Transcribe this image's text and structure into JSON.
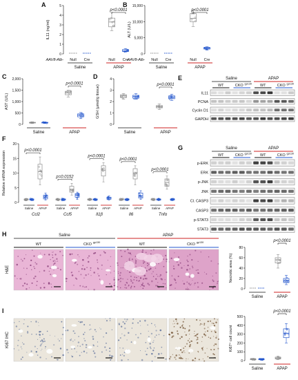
{
  "colors": {
    "wt_gray": "#8c8c8c",
    "cko_blue": "#2255cc",
    "apap_red": "#cc2222",
    "he_pink": "#d87fb8",
    "he_bg": "#e9b5d6",
    "ihc_bg": "#ebe6dc",
    "blot_band": "#2b2b2b"
  },
  "panels": {
    "A": {
      "letter": "A",
      "ylabel": "IL11 (ng/ml)",
      "yticks": [
        "0",
        "1",
        "2",
        "3",
        "4",
        "5"
      ],
      "p": "p<0.0001",
      "row_label": "AAV8-Alb-",
      "cats": [
        "Null",
        "Cre",
        "Null",
        "Cre"
      ],
      "groups": [
        "Saline",
        "APAP"
      ]
    },
    "B": {
      "letter": "B",
      "ylabel": "ALT (U/L)",
      "yticks": [
        "0",
        "5,000",
        "10,000",
        "15,000"
      ],
      "p": "p<0.0001",
      "row_label": "AAV8-Alb-",
      "cats": [
        "Null",
        "Cre",
        "Null",
        "Cre"
      ],
      "groups": [
        "Saline",
        "APAP"
      ]
    },
    "C": {
      "letter": "C",
      "ylabel": "AST (U/L)",
      "yticks": [
        "0",
        "500",
        "1,000",
        "1,500",
        "2,000"
      ],
      "p": "p<0.0001",
      "groups": [
        "Saline",
        "APAP"
      ]
    },
    "D": {
      "letter": "D",
      "ylabel": "GSH (μmol/g tissue)",
      "yticks": [
        "0",
        "1",
        "2",
        "3",
        "4"
      ],
      "p": "p<0.0001",
      "groups": [
        "Saline",
        "APAP"
      ]
    },
    "E": {
      "letter": "E",
      "groups": [
        "Saline",
        "APAP"
      ],
      "sub": [
        "WT",
        "CKO",
        "WT",
        "CKO"
      ],
      "sup": "gp130",
      "rows": [
        "IL11",
        "PCNA",
        "Cyclin D1",
        "GAPDH"
      ]
    },
    "F": {
      "letter": "F",
      "ylabel": "Relative mRNA expression",
      "yticks": [
        "0",
        "5",
        "10",
        "15",
        "20"
      ],
      "genes": [
        "Ccl2",
        "Ccl5",
        "Il1β",
        "Il6",
        "Tnfα"
      ],
      "pvals": [
        "p<0.0001",
        "p=0.0152",
        "p<0.0001",
        "p<0.0001",
        "p<0.0001"
      ],
      "xcats": [
        "Saline",
        "APAP"
      ]
    },
    "G": {
      "letter": "G",
      "groups": [
        "Saline",
        "APAP"
      ],
      "sub": [
        "WT",
        "CKO",
        "WT",
        "CKO"
      ],
      "sup": "gp130",
      "rows": [
        "p-ERK",
        "ERK",
        "p-JNK",
        "JNK",
        "Cl. CASP3",
        "CASP3",
        "p-STAT3",
        "STAT3"
      ]
    },
    "H": {
      "letter": "H",
      "row_label": "H&E",
      "top_groups": [
        "Saline",
        "APAP"
      ],
      "sub": [
        "WT",
        "CKO",
        "WT",
        "CKO"
      ],
      "sup": "gp130",
      "ylabel": "Necrotic area (%)",
      "yticks": [
        "0",
        "20",
        "40",
        "60",
        "80"
      ],
      "p": "p<0.0001",
      "groups": [
        "Saline",
        "APAP"
      ]
    },
    "I": {
      "letter": "I",
      "row_label": "Ki67 IHC",
      "ylabel": "Ki67⁺ cell count",
      "yticks": [
        "0",
        "100",
        "200",
        "300",
        "400",
        "500"
      ],
      "p": "p<0.0001",
      "groups": [
        "Saline",
        "APAP"
      ]
    }
  },
  "chart_data": [
    {
      "type": "box",
      "panel": "A",
      "ylabel": "IL11 (ng/ml)",
      "ylim": [
        0,
        5
      ],
      "categories": [
        "Saline Null",
        "Saline Cre",
        "APAP Null",
        "APAP Cre"
      ],
      "boxes": [
        {
          "min": 0,
          "q1": 0,
          "median": 0,
          "q3": 0,
          "max": 0
        },
        {
          "min": 0,
          "q1": 0,
          "median": 0,
          "q3": 0,
          "max": 0
        },
        {
          "min": 2.4,
          "q1": 2.8,
          "median": 3.3,
          "q3": 3.7,
          "max": 4.3
        },
        {
          "min": 0.2,
          "q1": 0.25,
          "median": 0.3,
          "q3": 0.45,
          "max": 0.55
        }
      ]
    },
    {
      "type": "box",
      "panel": "B",
      "ylabel": "ALT (U/L)",
      "ylim": [
        0,
        15000
      ],
      "categories": [
        "Saline Null",
        "Saline Cre",
        "APAP Null",
        "APAP Cre"
      ],
      "boxes": [
        {
          "min": 0,
          "q1": 0,
          "median": 0,
          "q3": 0,
          "max": 0
        },
        {
          "min": 0,
          "q1": 0,
          "median": 0,
          "q3": 0,
          "max": 0
        },
        {
          "min": 8500,
          "q1": 10000,
          "median": 11000,
          "q3": 12500,
          "max": 13500
        },
        {
          "min": 1200,
          "q1": 1500,
          "median": 1800,
          "q3": 2000,
          "max": 2200
        }
      ]
    },
    {
      "type": "box",
      "panel": "C",
      "ylabel": "AST (U/L)",
      "ylim": [
        0,
        2000
      ],
      "categories": [
        "Saline WT",
        "Saline CKO",
        "APAP WT",
        "APAP CKO"
      ],
      "boxes": [
        {
          "min": 40,
          "q1": 60,
          "median": 75,
          "q3": 90,
          "max": 110
        },
        {
          "min": 40,
          "q1": 60,
          "median": 75,
          "q3": 90,
          "max": 110
        },
        {
          "min": 1200,
          "q1": 1300,
          "median": 1380,
          "q3": 1450,
          "max": 1500
        },
        {
          "min": 250,
          "q1": 330,
          "median": 400,
          "q3": 460,
          "max": 520
        }
      ]
    },
    {
      "type": "box",
      "panel": "D",
      "ylabel": "GSH (μmol/g tissue)",
      "ylim": [
        0,
        4
      ],
      "categories": [
        "Saline WT",
        "Saline CKO",
        "APAP WT",
        "APAP CKO"
      ],
      "boxes": [
        {
          "min": 2.2,
          "q1": 2.35,
          "median": 2.5,
          "q3": 2.6,
          "max": 2.7
        },
        {
          "min": 2.2,
          "q1": 2.3,
          "median": 2.45,
          "q3": 2.55,
          "max": 2.7
        },
        {
          "min": 1.3,
          "q1": 1.45,
          "median": 1.55,
          "q3": 1.65,
          "max": 1.8
        },
        {
          "min": 2.1,
          "q1": 2.25,
          "median": 2.4,
          "q3": 2.5,
          "max": 2.65
        }
      ]
    },
    {
      "type": "box",
      "panel": "F",
      "ylabel": "Relative mRNA expression",
      "ylim": [
        0,
        20
      ],
      "genes": [
        "Ccl2",
        "Ccl5",
        "Il1β",
        "Il6",
        "Tnfα"
      ],
      "categories": [
        "Saline WT",
        "Saline CKO",
        "APAP WT",
        "APAP CKO"
      ],
      "boxes": [
        [
          {
            "min": 0.6,
            "q1": 0.8,
            "median": 1,
            "q3": 1.2,
            "max": 1.4
          },
          {
            "min": 0.6,
            "q1": 0.8,
            "median": 1,
            "q3": 1.2,
            "max": 1.4
          },
          {
            "min": 6,
            "q1": 8,
            "median": 10.5,
            "q3": 13,
            "max": 15.5
          },
          {
            "min": 0.8,
            "q1": 1.2,
            "median": 1.8,
            "q3": 2.5,
            "max": 3.2
          }
        ],
        [
          {
            "min": 0.6,
            "q1": 0.8,
            "median": 1,
            "q3": 1.2,
            "max": 1.4
          },
          {
            "min": 0.6,
            "q1": 0.8,
            "median": 1,
            "q3": 1.2,
            "max": 1.4
          },
          {
            "min": 2.5,
            "q1": 3.5,
            "median": 4.5,
            "q3": 5.5,
            "max": 6.5
          },
          {
            "min": 1,
            "q1": 1.8,
            "median": 2.5,
            "q3": 3,
            "max": 3.5
          }
        ],
        [
          {
            "min": 0.6,
            "q1": 0.8,
            "median": 1,
            "q3": 1.2,
            "max": 1.4
          },
          {
            "min": 0.6,
            "q1": 0.8,
            "median": 1,
            "q3": 1.2,
            "max": 1.4
          },
          {
            "min": 7,
            "q1": 9,
            "median": 11,
            "q3": 12.5,
            "max": 13.5
          },
          {
            "min": 0.8,
            "q1": 1.1,
            "median": 1.4,
            "q3": 1.8,
            "max": 2.2
          }
        ],
        [
          {
            "min": 0.6,
            "q1": 0.8,
            "median": 1,
            "q3": 1.2,
            "max": 1.4
          },
          {
            "min": 0.6,
            "q1": 0.8,
            "median": 1,
            "q3": 1.2,
            "max": 1.4
          },
          {
            "min": 6,
            "q1": 8,
            "median": 10,
            "q3": 11.5,
            "max": 12.5
          },
          {
            "min": 1,
            "q1": 1.5,
            "median": 2.2,
            "q3": 3.2,
            "max": 4
          }
        ],
        [
          {
            "min": 0.6,
            "q1": 0.8,
            "median": 1,
            "q3": 1.2,
            "max": 1.4
          },
          {
            "min": 0.6,
            "q1": 0.8,
            "median": 1,
            "q3": 1.2,
            "max": 1.4
          },
          {
            "min": 4.5,
            "q1": 5.5,
            "median": 6.8,
            "q3": 8,
            "max": 9
          },
          {
            "min": 0.6,
            "q1": 0.8,
            "median": 1,
            "q3": 1.2,
            "max": 1.4
          }
        ]
      ]
    },
    {
      "type": "box",
      "panel": "H",
      "ylabel": "Necrotic area (%)",
      "ylim": [
        0,
        80
      ],
      "categories": [
        "Saline WT",
        "Saline CKO",
        "APAP WT",
        "APAP CKO"
      ],
      "boxes": [
        {
          "min": 0,
          "q1": 0,
          "median": 0,
          "q3": 0,
          "max": 0
        },
        {
          "min": 0,
          "q1": 0,
          "median": 0,
          "q3": 0,
          "max": 0
        },
        {
          "min": 40,
          "q1": 50,
          "median": 56,
          "q3": 60,
          "max": 66
        },
        {
          "min": 8,
          "q1": 12,
          "median": 16,
          "q3": 20,
          "max": 26
        }
      ]
    },
    {
      "type": "box",
      "panel": "I",
      "ylabel": "Ki67⁺ cell count",
      "ylim": [
        0,
        500
      ],
      "categories": [
        "Saline WT",
        "Saline CKO",
        "APAP WT",
        "APAP CKO"
      ],
      "boxes": [
        {
          "min": 5,
          "q1": 10,
          "median": 15,
          "q3": 20,
          "max": 25
        },
        {
          "min": 5,
          "q1": 10,
          "median": 15,
          "q3": 20,
          "max": 25
        },
        {
          "min": 10,
          "q1": 20,
          "median": 30,
          "q3": 40,
          "max": 50
        },
        {
          "min": 200,
          "q1": 260,
          "median": 310,
          "q3": 360,
          "max": 420
        }
      ]
    }
  ]
}
